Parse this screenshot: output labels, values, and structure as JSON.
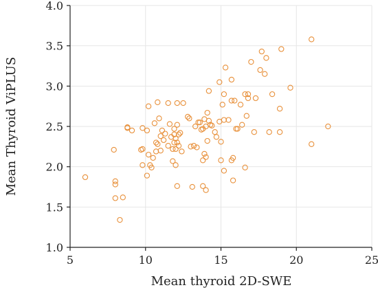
{
  "chart_data": {
    "type": "scatter",
    "title": "",
    "xlabel": "Mean thyroid 2D-SWE",
    "ylabel": "Mean Thyroid ViPLUS",
    "xlim": [
      5,
      25
    ],
    "ylim": [
      1.0,
      4.0
    ],
    "x_ticks": [
      "5",
      "10",
      "15",
      "20",
      "25"
    ],
    "y_ticks": [
      "1.0",
      "1.5",
      "2.0",
      "2.5",
      "3.0",
      "3.5",
      "4.0"
    ],
    "grid": true,
    "marker": "open-circle",
    "marker_color": "#e8903a",
    "points": [
      [
        6.0,
        1.87
      ],
      [
        7.9,
        2.21
      ],
      [
        8.0,
        1.82
      ],
      [
        8.0,
        1.78
      ],
      [
        8.0,
        1.61
      ],
      [
        8.3,
        1.34
      ],
      [
        8.5,
        1.62
      ],
      [
        8.8,
        2.49
      ],
      [
        8.8,
        2.48
      ],
      [
        9.1,
        2.45
      ],
      [
        9.7,
        2.21
      ],
      [
        9.8,
        2.22
      ],
      [
        9.8,
        2.48
      ],
      [
        9.8,
        2.02
      ],
      [
        10.1,
        1.89
      ],
      [
        10.1,
        2.45
      ],
      [
        10.2,
        2.75
      ],
      [
        10.2,
        2.15
      ],
      [
        10.3,
        2.02
      ],
      [
        10.4,
        1.99
      ],
      [
        10.5,
        2.11
      ],
      [
        10.6,
        2.54
      ],
      [
        10.7,
        2.3
      ],
      [
        10.7,
        2.19
      ],
      [
        10.8,
        2.8
      ],
      [
        10.8,
        2.28
      ],
      [
        10.9,
        2.6
      ],
      [
        11.0,
        2.38
      ],
      [
        11.0,
        2.2
      ],
      [
        11.1,
        2.45
      ],
      [
        11.2,
        2.33
      ],
      [
        11.3,
        2.41
      ],
      [
        11.5,
        2.26
      ],
      [
        11.5,
        2.79
      ],
      [
        11.6,
        2.53
      ],
      [
        11.7,
        2.37
      ],
      [
        11.8,
        2.22
      ],
      [
        11.8,
        2.07
      ],
      [
        11.9,
        2.4
      ],
      [
        11.9,
        2.3
      ],
      [
        11.9,
        2.47
      ],
      [
        12.0,
        2.35
      ],
      [
        12.0,
        2.02
      ],
      [
        12.0,
        2.22
      ],
      [
        12.1,
        2.52
      ],
      [
        12.1,
        2.3
      ],
      [
        12.1,
        2.79
      ],
      [
        12.1,
        1.76
      ],
      [
        12.2,
        2.26
      ],
      [
        12.2,
        2.4
      ],
      [
        12.3,
        2.42
      ],
      [
        12.4,
        2.19
      ],
      [
        12.5,
        2.79
      ],
      [
        12.8,
        2.62
      ],
      [
        12.9,
        2.6
      ],
      [
        13.0,
        2.25
      ],
      [
        13.1,
        1.75
      ],
      [
        13.2,
        2.26
      ],
      [
        13.3,
        2.5
      ],
      [
        13.4,
        2.24
      ],
      [
        13.5,
        2.55
      ],
      [
        13.6,
        2.55
      ],
      [
        13.7,
        2.46
      ],
      [
        13.8,
        2.47
      ],
      [
        13.8,
        2.08
      ],
      [
        13.8,
        1.76
      ],
      [
        13.9,
        2.59
      ],
      [
        13.9,
        2.16
      ],
      [
        14.0,
        2.5
      ],
      [
        14.0,
        2.12
      ],
      [
        14.0,
        1.71
      ],
      [
        14.1,
        2.67
      ],
      [
        14.1,
        2.32
      ],
      [
        14.2,
        2.94
      ],
      [
        14.2,
        2.57
      ],
      [
        14.3,
        2.52
      ],
      [
        14.4,
        2.51
      ],
      [
        14.6,
        2.43
      ],
      [
        14.7,
        2.37
      ],
      [
        14.9,
        2.56
      ],
      [
        14.9,
        3.05
      ],
      [
        15.0,
        2.31
      ],
      [
        15.1,
        2.77
      ],
      [
        15.2,
        2.9
      ],
      [
        15.2,
        2.58
      ],
      [
        15.3,
        3.23
      ],
      [
        15.5,
        2.58
      ],
      [
        15.7,
        3.08
      ],
      [
        15.7,
        2.82
      ],
      [
        15.8,
        2.11
      ],
      [
        15.8,
        1.83
      ],
      [
        15.9,
        2.82
      ],
      [
        16.1,
        2.47
      ],
      [
        16.3,
        2.77
      ],
      [
        16.4,
        2.52
      ],
      [
        16.6,
        2.9
      ],
      [
        16.7,
        2.63
      ],
      [
        16.8,
        2.85
      ],
      [
        16.8,
        2.9
      ],
      [
        17.0,
        3.3
      ],
      [
        17.2,
        2.43
      ],
      [
        17.3,
        2.85
      ],
      [
        17.6,
        3.2
      ],
      [
        17.7,
        3.43
      ],
      [
        17.9,
        3.15
      ],
      [
        18.0,
        3.35
      ],
      [
        18.2,
        2.43
      ],
      [
        18.4,
        2.9
      ],
      [
        18.9,
        2.43
      ],
      [
        18.9,
        2.72
      ],
      [
        19.0,
        3.46
      ],
      [
        19.6,
        2.98
      ],
      [
        21.0,
        2.28
      ],
      [
        21.0,
        3.58
      ],
      [
        22.1,
        2.5
      ],
      [
        15.2,
        1.95
      ],
      [
        15.7,
        2.08
      ],
      [
        15.0,
        2.08
      ],
      [
        16.0,
        2.47
      ],
      [
        16.6,
        1.99
      ]
    ]
  }
}
